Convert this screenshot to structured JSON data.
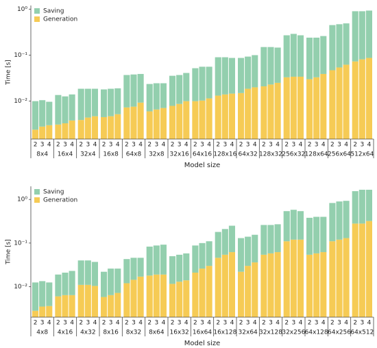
{
  "chart_data": [
    {
      "type": "bar",
      "stacked": true,
      "log_scale": true,
      "ylabel": "Time [s]",
      "xlabel": "Model size",
      "legend": "upper left",
      "groups": [
        "8x4",
        "16x4",
        "32x4",
        "16x8",
        "64x8",
        "32x8",
        "32x16",
        "64x16",
        "128x16",
        "64x32",
        "128x32",
        "256x32",
        "128x64",
        "256x64",
        "512x64"
      ],
      "categories": [
        "2",
        "3",
        "4",
        "2",
        "3",
        "4",
        "2",
        "3",
        "4",
        "2",
        "3",
        "4",
        "2",
        "3",
        "4",
        "2",
        "3",
        "4",
        "2",
        "3",
        "4",
        "2",
        "3",
        "4",
        "2",
        "3",
        "4",
        "2",
        "3",
        "4",
        "2",
        "3",
        "4",
        "2",
        "3",
        "4",
        "2",
        "3",
        "4",
        "2",
        "3",
        "4",
        "2",
        "3",
        "4"
      ],
      "series": [
        {
          "name": "Saving",
          "color": "#93cfae",
          "values": [
            0.0076,
            0.0077,
            0.0067,
            0.0105,
            0.0094,
            0.0102,
            0.0147,
            0.0142,
            0.0139,
            0.0135,
            0.0139,
            0.0138,
            0.0297,
            0.0304,
            0.0297,
            0.0176,
            0.0179,
            0.0174,
            0.0277,
            0.0283,
            0.031,
            0.042,
            0.0457,
            0.0445,
            0.0768,
            0.076,
            0.0724,
            0.072,
            0.0744,
            0.08,
            0.129,
            0.127,
            0.121,
            0.237,
            0.256,
            0.236,
            0.21,
            0.207,
            0.221,
            0.403,
            0.416,
            0.428,
            0.827,
            0.819,
            0.843
          ]
        },
        {
          "name": "Generation",
          "color": "#f6cb55",
          "values": [
            0.0024,
            0.0028,
            0.003,
            0.0031,
            0.0033,
            0.0038,
            0.0039,
            0.0044,
            0.0047,
            0.0045,
            0.0047,
            0.0052,
            0.0073,
            0.0076,
            0.0093,
            0.006,
            0.0066,
            0.0071,
            0.0079,
            0.0087,
            0.01,
            0.01,
            0.0103,
            0.0115,
            0.0132,
            0.014,
            0.0146,
            0.015,
            0.0186,
            0.02,
            0.021,
            0.023,
            0.025,
            0.033,
            0.034,
            0.034,
            0.03,
            0.033,
            0.039,
            0.047,
            0.054,
            0.062,
            0.073,
            0.081,
            0.087
          ]
        }
      ],
      "ylim": [
        0.0015,
        1.2
      ],
      "yticks": [
        {
          "value": 0.01,
          "label": "10⁻²"
        },
        {
          "value": 0.1,
          "label": "10⁻¹"
        },
        {
          "value": 1,
          "label": "10⁰"
        }
      ]
    },
    {
      "type": "bar",
      "stacked": true,
      "log_scale": true,
      "ylabel": "Time [s]",
      "xlabel": "Model size",
      "legend": "upper left",
      "groups": [
        "4x8",
        "4x16",
        "4x32",
        "8x16",
        "8x32",
        "8x64",
        "16x32",
        "16x64",
        "16x128",
        "32x64",
        "32x128",
        "32x256",
        "64x128",
        "64x256",
        "64x512"
      ],
      "categories": [
        "2",
        "3",
        "4",
        "2",
        "3",
        "4",
        "2",
        "3",
        "4",
        "2",
        "3",
        "4",
        "2",
        "3",
        "4",
        "2",
        "3",
        "4",
        "2",
        "3",
        "4",
        "2",
        "3",
        "4",
        "2",
        "3",
        "4",
        "2",
        "3",
        "4",
        "2",
        "3",
        "4",
        "2",
        "3",
        "4",
        "2",
        "3",
        "4",
        "2",
        "3",
        "4",
        "2",
        "3",
        "4"
      ],
      "series": [
        {
          "name": "Saving",
          "color": "#93cfae",
          "values": [
            0.0097,
            0.0099,
            0.0089,
            0.013,
            0.0146,
            0.0166,
            0.029,
            0.029,
            0.0266,
            0.0162,
            0.0196,
            0.0188,
            0.031,
            0.0316,
            0.029,
            0.065,
            0.069,
            0.073,
            0.0384,
            0.041,
            0.044,
            0.067,
            0.074,
            0.08,
            0.134,
            0.156,
            0.188,
            0.108,
            0.11,
            0.119,
            0.206,
            0.202,
            0.208,
            0.43,
            0.46,
            0.42,
            0.326,
            0.342,
            0.338,
            0.72,
            0.78,
            0.8,
            1.27,
            1.39,
            1.35
          ]
        },
        {
          "name": "Generation",
          "color": "#f6cb55",
          "values": [
            0.0028,
            0.0035,
            0.0036,
            0.006,
            0.0064,
            0.0064,
            0.011,
            0.011,
            0.0104,
            0.0058,
            0.0064,
            0.0072,
            0.012,
            0.0144,
            0.017,
            0.018,
            0.019,
            0.019,
            0.0116,
            0.013,
            0.014,
            0.021,
            0.026,
            0.03,
            0.046,
            0.054,
            0.062,
            0.022,
            0.03,
            0.036,
            0.054,
            0.058,
            0.062,
            0.11,
            0.12,
            0.12,
            0.054,
            0.058,
            0.062,
            0.11,
            0.12,
            0.13,
            0.28,
            0.28,
            0.32
          ]
        }
      ],
      "ylim": [
        0.002,
        2
      ],
      "yticks": [
        {
          "value": 0.01,
          "label": "10⁻²"
        },
        {
          "value": 0.1,
          "label": "10⁻¹"
        },
        {
          "value": 1,
          "label": "10⁰"
        }
      ]
    }
  ]
}
